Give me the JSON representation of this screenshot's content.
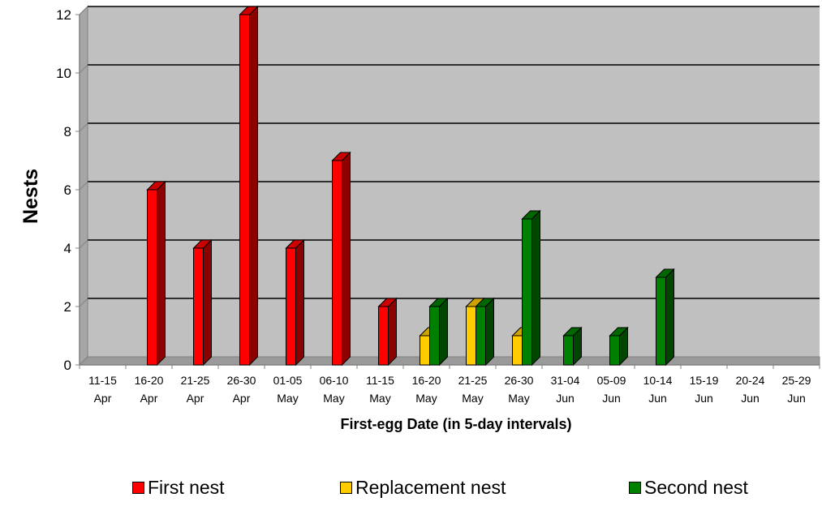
{
  "chart_data": {
    "type": "bar",
    "xlabel": "First-egg Date (in 5-day intervals)",
    "ylabel": "Nests",
    "ylim": [
      0,
      12
    ],
    "yticks": [
      "0",
      "2",
      "4",
      "6",
      "8",
      "10",
      "12"
    ],
    "grid": true,
    "legend_position": "bottom",
    "categories": [
      {
        "line1": "11-15",
        "line2": "Apr"
      },
      {
        "line1": "16-20",
        "line2": "Apr"
      },
      {
        "line1": "21-25",
        "line2": "Apr"
      },
      {
        "line1": "26-30",
        "line2": "Apr"
      },
      {
        "line1": "01-05",
        "line2": "May"
      },
      {
        "line1": "06-10",
        "line2": "May"
      },
      {
        "line1": "11-15",
        "line2": "May"
      },
      {
        "line1": "16-20",
        "line2": "May"
      },
      {
        "line1": "21-25",
        "line2": "May"
      },
      {
        "line1": "26-30",
        "line2": "May"
      },
      {
        "line1": "31-04",
        "line2": "Jun"
      },
      {
        "line1": "05-09",
        "line2": "Jun"
      },
      {
        "line1": "10-14",
        "line2": "Jun"
      },
      {
        "line1": "15-19",
        "line2": "Jun"
      },
      {
        "line1": "20-24",
        "line2": "Jun"
      },
      {
        "line1": "25-29",
        "line2": "Jun"
      }
    ],
    "series": [
      {
        "name": "First nest",
        "color": "#ff0000",
        "values": [
          0,
          6,
          4,
          12,
          4,
          7,
          2,
          0,
          0,
          0,
          0,
          0,
          0,
          0,
          0,
          0
        ]
      },
      {
        "name": "Replacement nest",
        "color": "#ffcc00",
        "values": [
          0,
          0,
          0,
          0,
          0,
          0,
          0,
          1,
          2,
          1,
          0,
          0,
          0,
          0,
          0,
          0
        ]
      },
      {
        "name": "Second nest",
        "color": "#008000",
        "values": [
          0,
          0,
          0,
          0,
          0,
          0,
          0,
          2,
          2,
          5,
          1,
          1,
          3,
          0,
          0,
          0
        ]
      }
    ]
  },
  "colors": {
    "plot_background": "#c0c0c0",
    "gridline": "#000000"
  }
}
